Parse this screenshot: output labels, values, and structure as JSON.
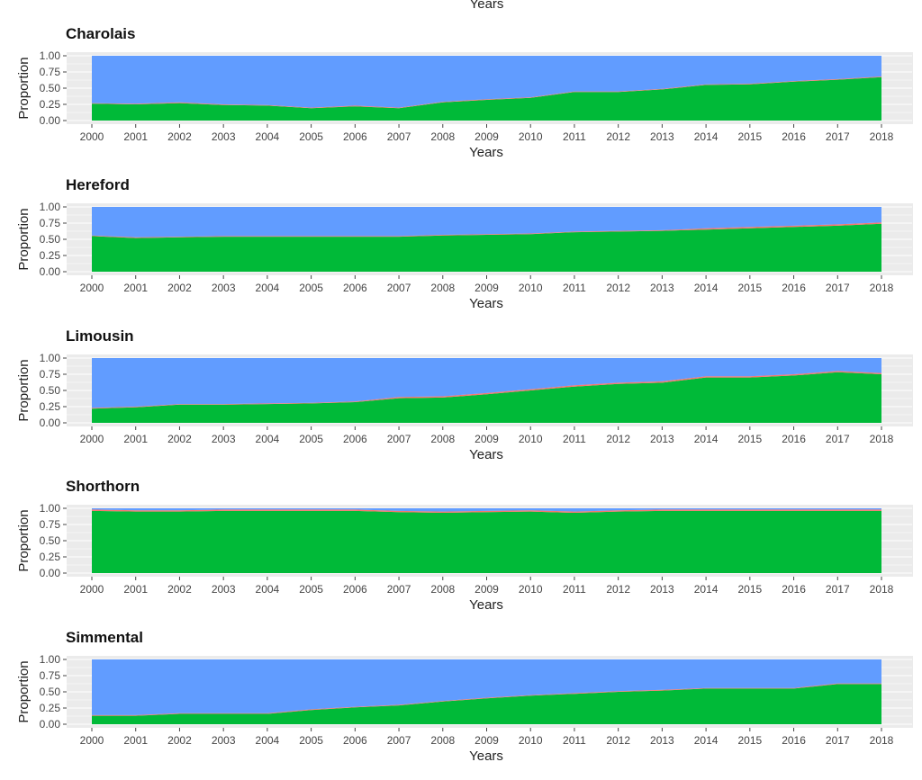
{
  "header": {
    "top_axis_label": "Years"
  },
  "chart_data": [
    {
      "type": "area",
      "title": "Charolais",
      "xlabel": "Years",
      "ylabel": "Proportion",
      "x": [
        2000,
        2001,
        2002,
        2003,
        2004,
        2005,
        2006,
        2007,
        2008,
        2009,
        2010,
        2011,
        2012,
        2013,
        2014,
        2015,
        2016,
        2017,
        2018
      ],
      "ylim": [
        0,
        1
      ],
      "yticks": [
        "0.00",
        "0.25",
        "0.50",
        "0.75",
        "1.00"
      ],
      "stacked": true,
      "grid": true,
      "series": [
        {
          "values": [
            0.26,
            0.25,
            0.27,
            0.24,
            0.23,
            0.19,
            0.22,
            0.19,
            0.28,
            0.32,
            0.35,
            0.44,
            0.44,
            0.48,
            0.55,
            0.56,
            0.6,
            0.63,
            0.67
          ]
        },
        {
          "values": [
            0.01,
            0.01,
            0.01,
            0.01,
            0.01,
            0.01,
            0.01,
            0.01,
            0.01,
            0.01,
            0.01,
            0.01,
            0.01,
            0.01,
            0.01,
            0.01,
            0.01,
            0.01,
            0.01
          ]
        },
        {
          "values": [
            0.73,
            0.74,
            0.72,
            0.75,
            0.76,
            0.8,
            0.77,
            0.8,
            0.71,
            0.67,
            0.64,
            0.55,
            0.55,
            0.51,
            0.44,
            0.43,
            0.39,
            0.36,
            0.32
          ]
        }
      ]
    },
    {
      "type": "area",
      "title": "Hereford",
      "xlabel": "Years",
      "ylabel": "Proportion",
      "x": [
        2000,
        2001,
        2002,
        2003,
        2004,
        2005,
        2006,
        2007,
        2008,
        2009,
        2010,
        2011,
        2012,
        2013,
        2014,
        2015,
        2016,
        2017,
        2018
      ],
      "ylim": [
        0,
        1
      ],
      "yticks": [
        "0.00",
        "0.25",
        "0.50",
        "0.75",
        "1.00"
      ],
      "stacked": true,
      "grid": true,
      "series": [
        {
          "values": [
            0.55,
            0.52,
            0.53,
            0.54,
            0.54,
            0.54,
            0.54,
            0.54,
            0.56,
            0.57,
            0.58,
            0.61,
            0.62,
            0.63,
            0.65,
            0.67,
            0.69,
            0.71,
            0.74
          ]
        },
        {
          "values": [
            0.01,
            0.01,
            0.01,
            0.01,
            0.01,
            0.01,
            0.01,
            0.01,
            0.01,
            0.01,
            0.01,
            0.01,
            0.01,
            0.01,
            0.02,
            0.02,
            0.02,
            0.02,
            0.02
          ]
        },
        {
          "values": [
            0.44,
            0.47,
            0.46,
            0.45,
            0.45,
            0.45,
            0.45,
            0.45,
            0.43,
            0.42,
            0.41,
            0.38,
            0.37,
            0.36,
            0.33,
            0.31,
            0.29,
            0.27,
            0.24
          ]
        }
      ]
    },
    {
      "type": "area",
      "title": "Limousin",
      "xlabel": "Years",
      "ylabel": "Proportion",
      "x": [
        2000,
        2001,
        2002,
        2003,
        2004,
        2005,
        2006,
        2007,
        2008,
        2009,
        2010,
        2011,
        2012,
        2013,
        2014,
        2015,
        2016,
        2017,
        2018
      ],
      "ylim": [
        0,
        1
      ],
      "yticks": [
        "0.00",
        "0.25",
        "0.50",
        "0.75",
        "1.00"
      ],
      "stacked": true,
      "grid": true,
      "series": [
        {
          "values": [
            0.22,
            0.24,
            0.28,
            0.28,
            0.29,
            0.3,
            0.32,
            0.38,
            0.39,
            0.44,
            0.5,
            0.56,
            0.6,
            0.62,
            0.7,
            0.7,
            0.73,
            0.78,
            0.75
          ]
        },
        {
          "values": [
            0.01,
            0.01,
            0.01,
            0.01,
            0.01,
            0.01,
            0.01,
            0.02,
            0.02,
            0.02,
            0.02,
            0.02,
            0.02,
            0.02,
            0.02,
            0.02,
            0.02,
            0.02,
            0.02
          ]
        },
        {
          "values": [
            0.77,
            0.75,
            0.71,
            0.71,
            0.7,
            0.69,
            0.67,
            0.6,
            0.59,
            0.54,
            0.48,
            0.42,
            0.38,
            0.36,
            0.28,
            0.28,
            0.25,
            0.2,
            0.23
          ]
        }
      ]
    },
    {
      "type": "area",
      "title": "Shorthorn",
      "xlabel": "Years",
      "ylabel": "Proportion",
      "x": [
        2000,
        2001,
        2002,
        2003,
        2004,
        2005,
        2006,
        2007,
        2008,
        2009,
        2010,
        2011,
        2012,
        2013,
        2014,
        2015,
        2016,
        2017,
        2018
      ],
      "ylim": [
        0,
        1
      ],
      "yticks": [
        "0.00",
        "0.25",
        "0.50",
        "0.75",
        "1.00"
      ],
      "stacked": true,
      "grid": true,
      "series": [
        {
          "values": [
            0.96,
            0.95,
            0.95,
            0.96,
            0.96,
            0.96,
            0.96,
            0.94,
            0.93,
            0.94,
            0.95,
            0.93,
            0.95,
            0.96,
            0.96,
            0.96,
            0.96,
            0.96,
            0.96
          ]
        },
        {
          "values": [
            0.02,
            0.02,
            0.02,
            0.02,
            0.02,
            0.02,
            0.02,
            0.02,
            0.02,
            0.02,
            0.02,
            0.02,
            0.02,
            0.02,
            0.02,
            0.02,
            0.02,
            0.02,
            0.02
          ]
        },
        {
          "values": [
            0.02,
            0.03,
            0.03,
            0.02,
            0.02,
            0.02,
            0.02,
            0.04,
            0.05,
            0.04,
            0.03,
            0.05,
            0.03,
            0.02,
            0.02,
            0.02,
            0.02,
            0.02,
            0.02
          ]
        }
      ]
    },
    {
      "type": "area",
      "title": "Simmental",
      "xlabel": "Years",
      "ylabel": "Proportion",
      "x": [
        2000,
        2001,
        2002,
        2003,
        2004,
        2005,
        2006,
        2007,
        2008,
        2009,
        2010,
        2011,
        2012,
        2013,
        2014,
        2015,
        2016,
        2017,
        2018
      ],
      "ylim": [
        0,
        1
      ],
      "yticks": [
        "0.00",
        "0.25",
        "0.50",
        "0.75",
        "1.00"
      ],
      "stacked": true,
      "grid": true,
      "series": [
        {
          "values": [
            0.13,
            0.13,
            0.16,
            0.16,
            0.16,
            0.22,
            0.26,
            0.29,
            0.35,
            0.4,
            0.44,
            0.47,
            0.5,
            0.52,
            0.55,
            0.55,
            0.55,
            0.62,
            0.62
          ]
        },
        {
          "values": [
            0.01,
            0.01,
            0.01,
            0.01,
            0.01,
            0.01,
            0.01,
            0.01,
            0.01,
            0.01,
            0.01,
            0.01,
            0.01,
            0.01,
            0.01,
            0.01,
            0.01,
            0.01,
            0.01
          ]
        },
        {
          "values": [
            0.86,
            0.86,
            0.83,
            0.83,
            0.83,
            0.77,
            0.73,
            0.7,
            0.64,
            0.59,
            0.55,
            0.52,
            0.49,
            0.47,
            0.44,
            0.44,
            0.44,
            0.37,
            0.37
          ]
        }
      ]
    }
  ],
  "colors": {
    "green": "#00BA38",
    "red": "#F8766D",
    "blue": "#619CFF",
    "panel_bg": "#EBEBEB",
    "grid": "#FFFFFF"
  }
}
